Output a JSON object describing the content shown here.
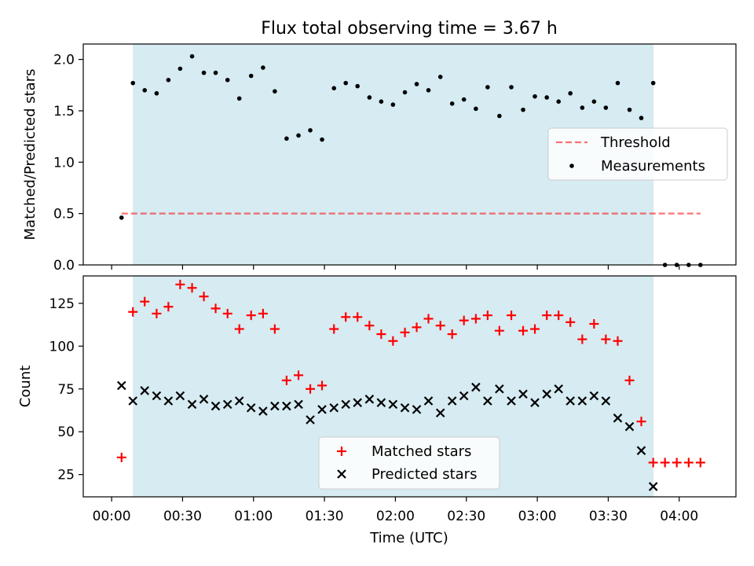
{
  "title": "Flux total observing time = 3.67 h",
  "colors": {
    "shade": "#add8e6",
    "threshold": "#ff0000",
    "matched": "#ff0000",
    "predicted": "#000000",
    "measurement": "#000000"
  },
  "chart_data": [
    {
      "type": "scatter",
      "name": "ratio-panel",
      "ylabel": "Matched/Predicted stars",
      "xlabel": "",
      "xlim": [
        -0.2,
        4.4
      ],
      "ylim": [
        0,
        2.15
      ],
      "yticks": [
        0.0,
        0.5,
        1.0,
        1.5,
        2.0
      ],
      "ytick_labels": [
        "0.0",
        "0.5",
        "1.0",
        "1.5",
        "2.0"
      ],
      "shaded_span": [
        0.15,
        3.82
      ],
      "threshold": {
        "label": "Threshold",
        "value": 0.5,
        "x_range": [
          0.07,
          4.15
        ]
      },
      "legend": {
        "position": "center-right",
        "entries": [
          "Threshold",
          "Measurements"
        ]
      },
      "series": [
        {
          "name": "Measurements",
          "x": [
            0.07,
            0.15,
            0.233,
            0.317,
            0.4,
            0.483,
            0.567,
            0.65,
            0.733,
            0.817,
            0.9,
            0.983,
            1.067,
            1.15,
            1.233,
            1.317,
            1.4,
            1.483,
            1.567,
            1.65,
            1.733,
            1.817,
            1.9,
            1.983,
            2.067,
            2.15,
            2.233,
            2.317,
            2.4,
            2.483,
            2.567,
            2.65,
            2.733,
            2.817,
            2.9,
            2.983,
            3.067,
            3.15,
            3.233,
            3.317,
            3.4,
            3.483,
            3.567,
            3.65,
            3.733,
            3.817,
            3.9,
            3.983,
            4.067,
            4.15
          ],
          "y": [
            0.46,
            1.77,
            1.7,
            1.67,
            1.8,
            1.91,
            2.03,
            1.87,
            1.87,
            1.8,
            1.62,
            1.84,
            1.92,
            1.69,
            1.23,
            1.26,
            1.31,
            1.22,
            1.72,
            1.77,
            1.74,
            1.63,
            1.59,
            1.56,
            1.68,
            1.76,
            1.7,
            1.83,
            1.57,
            1.61,
            1.52,
            1.73,
            1.45,
            1.73,
            1.51,
            1.64,
            1.63,
            1.59,
            1.67,
            1.53,
            1.59,
            1.53,
            1.77,
            1.51,
            1.43,
            1.77,
            0.0,
            0.0,
            0.0,
            0.0
          ]
        }
      ]
    },
    {
      "type": "scatter",
      "name": "count-panel",
      "ylabel": "Count",
      "xlabel": "Time (UTC)",
      "xlim": [
        -0.2,
        4.4
      ],
      "ylim": [
        12,
        141
      ],
      "yticks": [
        25,
        50,
        75,
        100,
        125
      ],
      "ytick_labels": [
        "25",
        "50",
        "75",
        "100",
        "125"
      ],
      "xticks": [
        0,
        0.5,
        1.0,
        1.5,
        2.0,
        2.5,
        3.0,
        3.5,
        4.0
      ],
      "xtick_labels": [
        "00:00",
        "00:30",
        "01:00",
        "01:30",
        "02:00",
        "02:30",
        "03:00",
        "03:30",
        "04:00"
      ],
      "shaded_span": [
        0.15,
        3.82
      ],
      "legend": {
        "position": "bottom-center",
        "entries": [
          "Matched stars",
          "Predicted stars"
        ]
      },
      "x": [
        0.07,
        0.15,
        0.233,
        0.317,
        0.4,
        0.483,
        0.567,
        0.65,
        0.733,
        0.817,
        0.9,
        0.983,
        1.067,
        1.15,
        1.233,
        1.317,
        1.4,
        1.483,
        1.567,
        1.65,
        1.733,
        1.817,
        1.9,
        1.983,
        2.067,
        2.15,
        2.233,
        2.317,
        2.4,
        2.483,
        2.567,
        2.65,
        2.733,
        2.817,
        2.9,
        2.983,
        3.067,
        3.15,
        3.233,
        3.317,
        3.4,
        3.483,
        3.567,
        3.65,
        3.733,
        3.817,
        3.9,
        3.983,
        4.067,
        4.15
      ],
      "series": [
        {
          "name": "Matched stars",
          "marker": "plus",
          "values": [
            35,
            120,
            126,
            119,
            123,
            136,
            134,
            129,
            122,
            119,
            110,
            118,
            119,
            110,
            80,
            83,
            75,
            77,
            110,
            117,
            117,
            112,
            107,
            103,
            108,
            111,
            116,
            112,
            107,
            115,
            116,
            118,
            109,
            118,
            109,
            110,
            118,
            118,
            114,
            104,
            113,
            104,
            103,
            80,
            56,
            32,
            32,
            32,
            32,
            32
          ]
        },
        {
          "name": "Predicted stars",
          "marker": "x",
          "values": [
            77,
            68,
            74,
            71,
            68,
            71,
            66,
            69,
            65,
            66,
            68,
            64,
            62,
            65,
            65,
            66,
            57,
            63,
            64,
            66,
            67,
            69,
            67,
            66,
            64,
            63,
            68,
            61,
            68,
            71,
            76,
            68,
            75,
            68,
            72,
            67,
            72,
            75,
            68,
            68,
            71,
            68,
            58,
            53,
            39,
            18
          ]
        }
      ]
    }
  ]
}
